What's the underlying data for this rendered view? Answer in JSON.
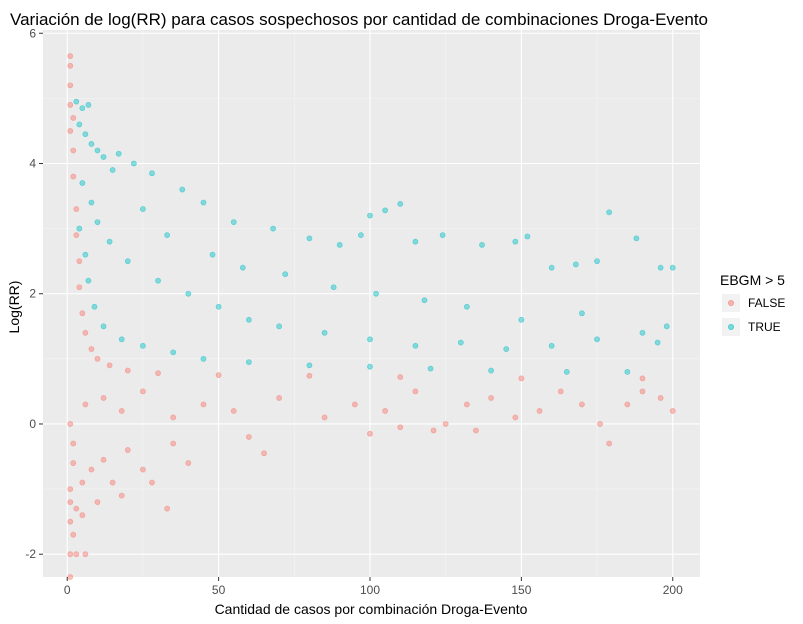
{
  "chart_data": {
    "type": "scatter",
    "title": "Variación de log(RR) para casos sospechosos por cantidad de combinaciones Droga-Evento",
    "xlabel": "Cantidad de casos por combinación Droga-Evento",
    "ylabel": "Log(RR)",
    "xlim": [
      -8,
      209
    ],
    "ylim": [
      -2.35,
      6.05
    ],
    "x_ticks": [
      0,
      50,
      100,
      150,
      200
    ],
    "x_tick_labels": [
      "0",
      "50",
      "100",
      "150",
      "200"
    ],
    "y_ticks": [
      -2,
      0,
      2,
      4,
      6
    ],
    "y_tick_labels": [
      "-2",
      "0",
      "2",
      "4",
      "6"
    ],
    "grid": true,
    "background": "#EBEBEB",
    "legend": {
      "title": "EBGM > 5",
      "position": "right"
    },
    "series": [
      {
        "name": "FALSE",
        "color": "#F8766D",
        "points": [
          [
            1,
            5.65
          ],
          [
            1,
            5.5
          ],
          [
            1,
            5.2
          ],
          [
            1,
            4.9
          ],
          [
            2,
            4.7
          ],
          [
            1,
            4.5
          ],
          [
            2,
            4.2
          ],
          [
            2,
            3.8
          ],
          [
            3,
            3.3
          ],
          [
            3,
            2.9
          ],
          [
            4,
            2.5
          ],
          [
            4,
            2.1
          ],
          [
            5,
            1.7
          ],
          [
            6,
            1.4
          ],
          [
            8,
            1.15
          ],
          [
            10,
            1.0
          ],
          [
            14,
            0.9
          ],
          [
            20,
            0.82
          ],
          [
            30,
            0.78
          ],
          [
            50,
            0.75
          ],
          [
            80,
            0.74
          ],
          [
            110,
            0.72
          ],
          [
            150,
            0.7
          ],
          [
            190,
            0.7
          ],
          [
            1,
            0.0
          ],
          [
            2,
            -0.3
          ],
          [
            2,
            -0.6
          ],
          [
            1,
            -1.0
          ],
          [
            1,
            -1.2
          ],
          [
            1,
            -1.5
          ],
          [
            2,
            -1.7
          ],
          [
            1,
            -2.0
          ],
          [
            3,
            -2.0
          ],
          [
            6,
            -2.0
          ],
          [
            1,
            -2.35
          ],
          [
            3,
            -1.3
          ],
          [
            5,
            -0.9
          ],
          [
            8,
            -0.7
          ],
          [
            12,
            -0.55
          ],
          [
            20,
            -0.4
          ],
          [
            35,
            -0.3
          ],
          [
            60,
            -0.2
          ],
          [
            100,
            -0.15
          ],
          [
            28,
            -0.9
          ],
          [
            33,
            -1.3
          ],
          [
            15,
            -0.9
          ],
          [
            18,
            -1.1
          ],
          [
            10,
            -1.2
          ],
          [
            5,
            -1.4
          ],
          [
            25,
            -0.7
          ],
          [
            40,
            -0.6
          ],
          [
            65,
            -0.45
          ],
          [
            6,
            0.3
          ],
          [
            12,
            0.4
          ],
          [
            18,
            0.2
          ],
          [
            25,
            0.5
          ],
          [
            35,
            0.1
          ],
          [
            45,
            0.3
          ],
          [
            55,
            0.2
          ],
          [
            70,
            0.4
          ],
          [
            85,
            0.1
          ],
          [
            95,
            0.3
          ],
          [
            105,
            0.2
          ],
          [
            115,
            0.5
          ],
          [
            125,
            0.0
          ],
          [
            132,
            0.3
          ],
          [
            140,
            0.4
          ],
          [
            148,
            0.1
          ],
          [
            156,
            0.2
          ],
          [
            163,
            0.5
          ],
          [
            170,
            0.3
          ],
          [
            176,
            0.0
          ],
          [
            179,
            -0.3
          ],
          [
            185,
            0.3
          ],
          [
            190,
            0.5
          ],
          [
            196,
            0.4
          ],
          [
            200,
            0.2
          ],
          [
            121,
            -0.1
          ],
          [
            110,
            -0.05
          ],
          [
            135,
            -0.1
          ]
        ]
      },
      {
        "name": "TRUE",
        "color": "#00BFC4",
        "points": [
          [
            3,
            4.95
          ],
          [
            5,
            4.85
          ],
          [
            7,
            4.9
          ],
          [
            4,
            4.6
          ],
          [
            6,
            4.45
          ],
          [
            8,
            4.3
          ],
          [
            10,
            4.2
          ],
          [
            12,
            4.1
          ],
          [
            17,
            4.15
          ],
          [
            22,
            4.0
          ],
          [
            28,
            3.85
          ],
          [
            38,
            3.6
          ],
          [
            45,
            3.4
          ],
          [
            55,
            3.1
          ],
          [
            68,
            3.0
          ],
          [
            80,
            2.85
          ],
          [
            90,
            2.75
          ],
          [
            97,
            2.9
          ],
          [
            100,
            3.2
          ],
          [
            105,
            3.28
          ],
          [
            110,
            3.38
          ],
          [
            115,
            2.8
          ],
          [
            124,
            2.9
          ],
          [
            137,
            2.75
          ],
          [
            148,
            2.8
          ],
          [
            152,
            2.88
          ],
          [
            160,
            2.4
          ],
          [
            168,
            2.45
          ],
          [
            175,
            2.5
          ],
          [
            179,
            3.25
          ],
          [
            188,
            2.85
          ],
          [
            196,
            2.4
          ],
          [
            200,
            2.4
          ],
          [
            5,
            3.7
          ],
          [
            8,
            3.4
          ],
          [
            10,
            3.1
          ],
          [
            14,
            2.8
          ],
          [
            20,
            2.5
          ],
          [
            30,
            2.2
          ],
          [
            40,
            2.0
          ],
          [
            50,
            1.8
          ],
          [
            60,
            1.6
          ],
          [
            70,
            1.5
          ],
          [
            85,
            1.4
          ],
          [
            100,
            1.3
          ],
          [
            115,
            1.2
          ],
          [
            130,
            1.25
          ],
          [
            145,
            1.15
          ],
          [
            160,
            1.2
          ],
          [
            175,
            1.3
          ],
          [
            190,
            1.4
          ],
          [
            198,
            1.5
          ],
          [
            4,
            3.0
          ],
          [
            6,
            2.6
          ],
          [
            7,
            2.2
          ],
          [
            9,
            1.8
          ],
          [
            12,
            1.5
          ],
          [
            18,
            1.3
          ],
          [
            25,
            1.2
          ],
          [
            35,
            1.1
          ],
          [
            45,
            1.0
          ],
          [
            60,
            0.95
          ],
          [
            80,
            0.9
          ],
          [
            100,
            0.88
          ],
          [
            120,
            0.85
          ],
          [
            140,
            0.82
          ],
          [
            165,
            0.8
          ],
          [
            185,
            0.8
          ],
          [
            15,
            3.9
          ],
          [
            25,
            3.3
          ],
          [
            33,
            2.9
          ],
          [
            48,
            2.6
          ],
          [
            58,
            2.4
          ],
          [
            72,
            2.3
          ],
          [
            88,
            2.1
          ],
          [
            102,
            2.0
          ],
          [
            118,
            1.9
          ],
          [
            132,
            1.8
          ],
          [
            150,
            1.6
          ],
          [
            170,
            1.7
          ],
          [
            195,
            1.25
          ]
        ]
      }
    ]
  }
}
